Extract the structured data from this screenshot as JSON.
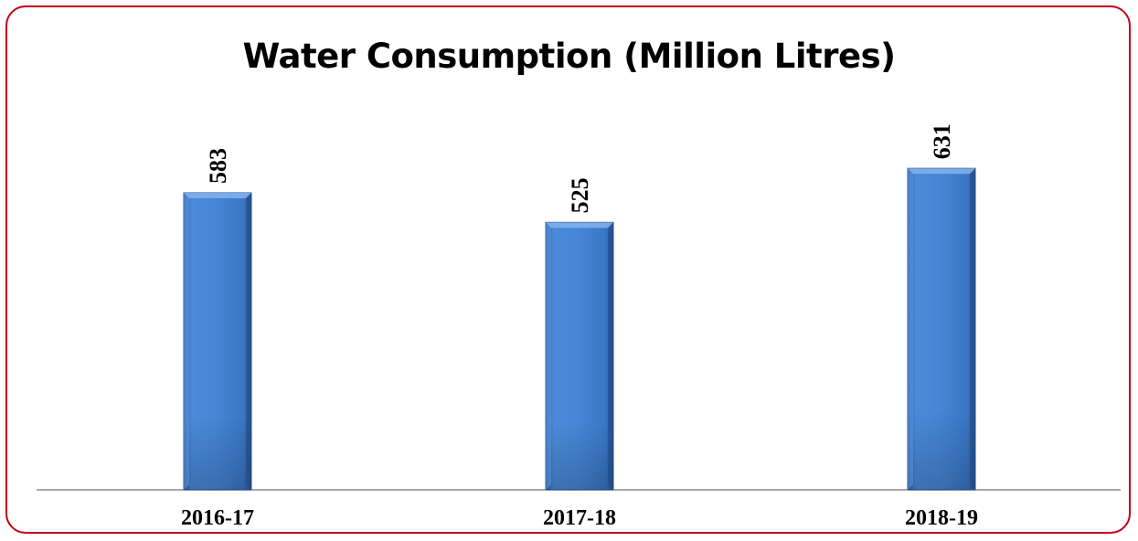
{
  "chart_data": {
    "type": "bar",
    "title": "Water Consumption (Million Litres)",
    "categories": [
      "2016-17",
      "2017-18",
      "2018-19"
    ],
    "values": [
      583,
      525,
      631
    ],
    "data_labels": [
      "583",
      "525",
      "631"
    ],
    "xlabel": "",
    "ylabel": "",
    "ylim": [
      0,
      700
    ],
    "grid": false,
    "legend": "none",
    "bar_color": "#3f7fcf",
    "bar_color_dark": "#2b5ea8",
    "frame_color": "#c0001a"
  }
}
